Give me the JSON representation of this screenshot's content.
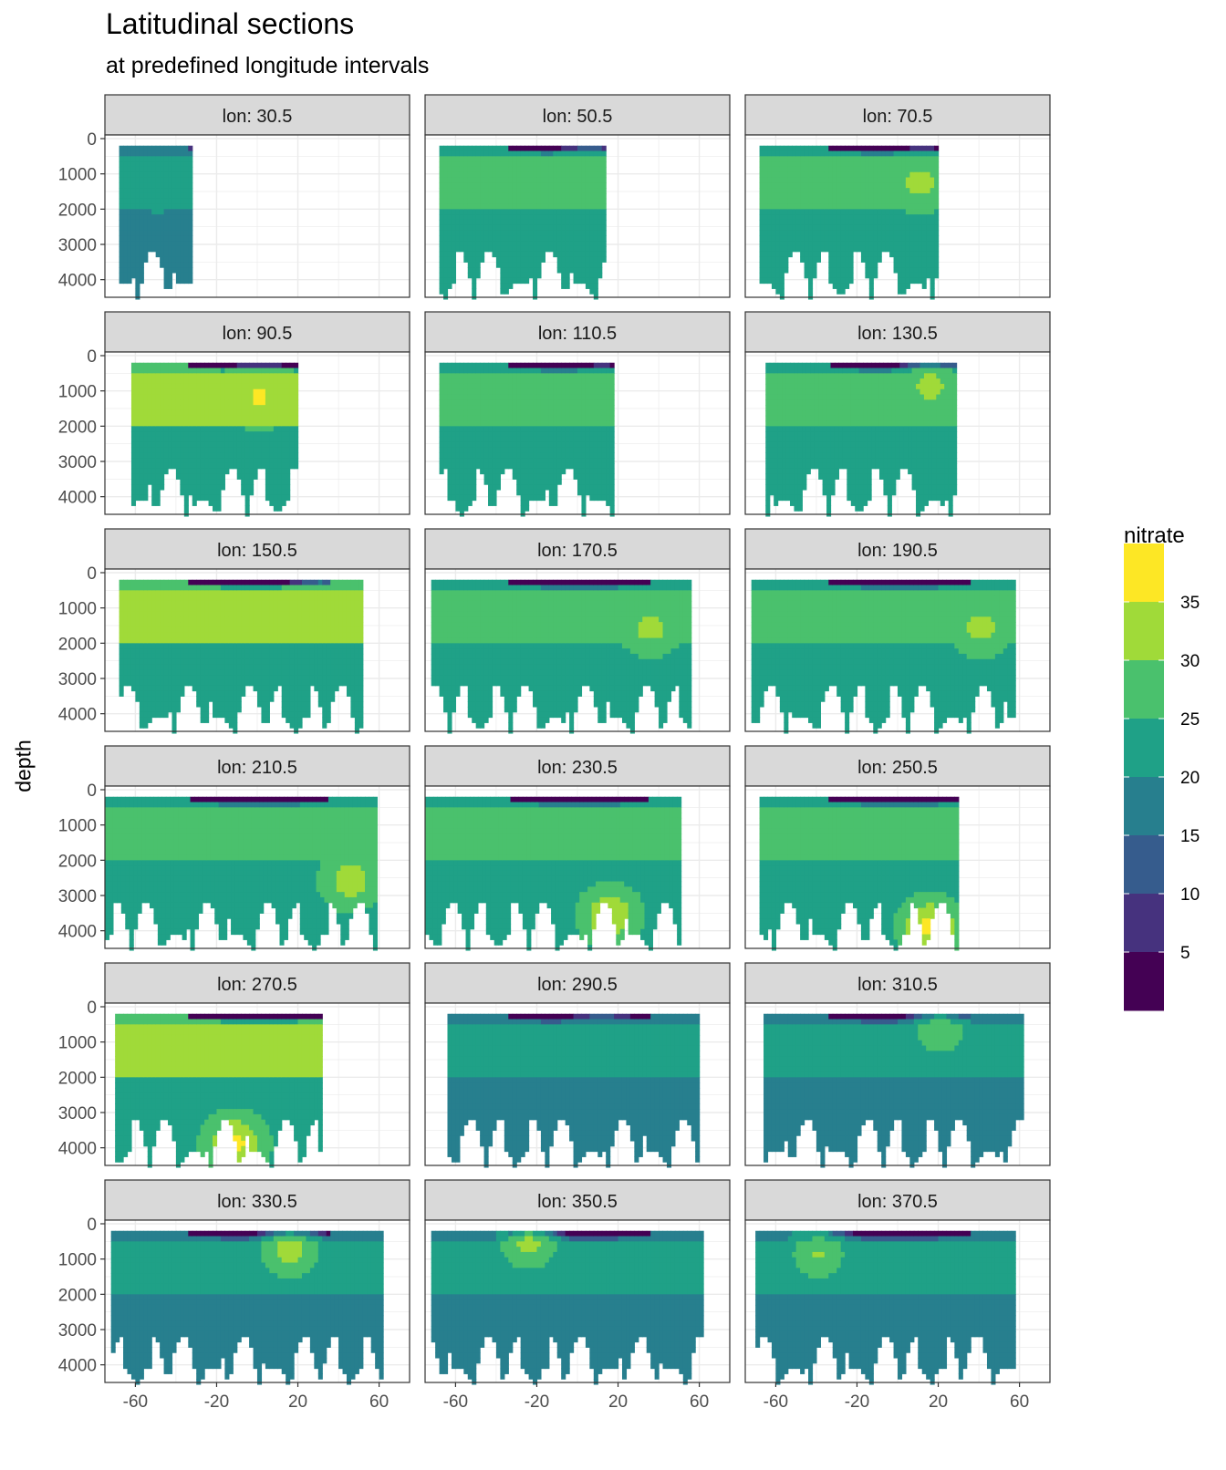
{
  "title": "Latitudinal sections",
  "subtitle": "at predefined longitude intervals",
  "chart_data": {
    "type": "heatmap",
    "ylabel": "depth",
    "xlabel": "",
    "ylim": [
      4500,
      0
    ],
    "xlim": [
      -75,
      75
    ],
    "y_ticks": [
      "0",
      "1000",
      "2000",
      "3000",
      "4000"
    ],
    "x_ticks": [
      "-60",
      "-20",
      "20",
      "60"
    ],
    "grid": true,
    "facets": [
      {
        "label": "lon: 30.5",
        "lat_range": [
          -68,
          -32
        ],
        "max_depth": 4500,
        "deep_band": 15,
        "mid_band": 20,
        "surface_min": 5,
        "peak_value": 22,
        "peak_lat": -50,
        "peak_depth": 1500
      },
      {
        "label": "lon: 50.5",
        "lat_range": [
          -68,
          14
        ],
        "max_depth": 4500,
        "deep_band": 20,
        "mid_band": 25,
        "surface_min": 0,
        "peak_value": 27,
        "peak_lat": 5,
        "peak_depth": 900
      },
      {
        "label": "lon: 70.5",
        "lat_range": [
          -68,
          20
        ],
        "max_depth": 4500,
        "deep_band": 20,
        "mid_band": 25,
        "surface_min": 0,
        "peak_value": 32,
        "peak_lat": 10,
        "peak_depth": 1200
      },
      {
        "label": "lon: 90.5",
        "lat_range": [
          -62,
          20
        ],
        "max_depth": 4500,
        "deep_band": 20,
        "mid_band": 30,
        "surface_min": 0,
        "peak_value": 36,
        "peak_lat": 0,
        "peak_depth": 1100
      },
      {
        "label": "lon: 110.5",
        "lat_range": [
          -68,
          18
        ],
        "max_depth": 4500,
        "deep_band": 20,
        "mid_band": 25,
        "surface_min": 0,
        "peak_value": 27,
        "peak_lat": 10,
        "peak_depth": 1200
      },
      {
        "label": "lon: 130.5",
        "lat_range": [
          -65,
          28
        ],
        "max_depth": 4500,
        "deep_band": 20,
        "mid_band": 25,
        "surface_min": 0,
        "peak_value": 32,
        "peak_lat": 15,
        "peak_depth": 800
      },
      {
        "label": "lon: 150.5",
        "lat_range": [
          -68,
          52
        ],
        "max_depth": 4500,
        "deep_band": 20,
        "mid_band": 30,
        "surface_min": 0,
        "peak_value": 32,
        "peak_lat": 30,
        "peak_depth": 900
      },
      {
        "label": "lon: 170.5",
        "lat_range": [
          -72,
          56
        ],
        "max_depth": 4500,
        "deep_band": 20,
        "mid_band": 25,
        "surface_min": 0,
        "peak_value": 32,
        "peak_lat": 35,
        "peak_depth": 1500
      },
      {
        "label": "lon: 190.5",
        "lat_range": [
          -72,
          58
        ],
        "max_depth": 4500,
        "deep_band": 20,
        "mid_band": 25,
        "surface_min": 0,
        "peak_value": 32,
        "peak_lat": 40,
        "peak_depth": 1500
      },
      {
        "label": "lon: 210.5",
        "lat_range": [
          -75,
          58
        ],
        "max_depth": 4500,
        "deep_band": 20,
        "mid_band": 25,
        "surface_min": 0,
        "peak_value": 34,
        "peak_lat": 45,
        "peak_depth": 2500
      },
      {
        "label": "lon: 230.5",
        "lat_range": [
          -75,
          50
        ],
        "max_depth": 4500,
        "deep_band": 20,
        "mid_band": 25,
        "surface_min": 0,
        "peak_value": 36,
        "peak_lat": 15,
        "peak_depth": 3500
      },
      {
        "label": "lon: 250.5",
        "lat_range": [
          -68,
          30
        ],
        "max_depth": 4500,
        "deep_band": 20,
        "mid_band": 25,
        "surface_min": 0,
        "peak_value": 38,
        "peak_lat": 15,
        "peak_depth": 3800
      },
      {
        "label": "lon: 270.5",
        "lat_range": [
          -70,
          32
        ],
        "max_depth": 4500,
        "deep_band": 20,
        "mid_band": 30,
        "surface_min": 0,
        "peak_value": 38,
        "peak_lat": -12,
        "peak_depth": 3800
      },
      {
        "label": "lon: 290.5",
        "lat_range": [
          -64,
          60
        ],
        "max_depth": 4500,
        "deep_band": 15,
        "mid_band": 20,
        "surface_min": 0,
        "peak_value": 22,
        "peak_lat": 10,
        "peak_depth": 800
      },
      {
        "label": "lon: 310.5",
        "lat_range": [
          -66,
          62
        ],
        "max_depth": 4500,
        "deep_band": 15,
        "mid_band": 20,
        "surface_min": 0,
        "peak_value": 30,
        "peak_lat": 20,
        "peak_depth": 600
      },
      {
        "label": "lon: 330.5",
        "lat_range": [
          -72,
          62
        ],
        "max_depth": 4500,
        "deep_band": 15,
        "mid_band": 20,
        "surface_min": 0,
        "peak_value": 34,
        "peak_lat": 15,
        "peak_depth": 700
      },
      {
        "label": "lon: 350.5",
        "lat_range": [
          -72,
          62
        ],
        "max_depth": 4500,
        "deep_band": 15,
        "mid_band": 20,
        "surface_min": 0,
        "peak_value": 33,
        "peak_lat": -25,
        "peak_depth": 500
      },
      {
        "label": "lon: 370.5",
        "lat_range": [
          -70,
          58
        ],
        "max_depth": 4500,
        "deep_band": 15,
        "mid_band": 20,
        "surface_min": 0,
        "peak_value": 31,
        "peak_lat": -40,
        "peak_depth": 800
      }
    ],
    "legend": {
      "title": "nitrate",
      "placement": "right",
      "labels": [
        "35",
        "30",
        "25",
        "20",
        "15",
        "10",
        "5"
      ],
      "levels": [
        40,
        35,
        30,
        25,
        20,
        15,
        10,
        5,
        0
      ],
      "colors": [
        "#FDE725",
        "#A0DA39",
        "#4AC16D",
        "#1FA187",
        "#277F8E",
        "#365C8D",
        "#46327E",
        "#440154"
      ]
    }
  }
}
